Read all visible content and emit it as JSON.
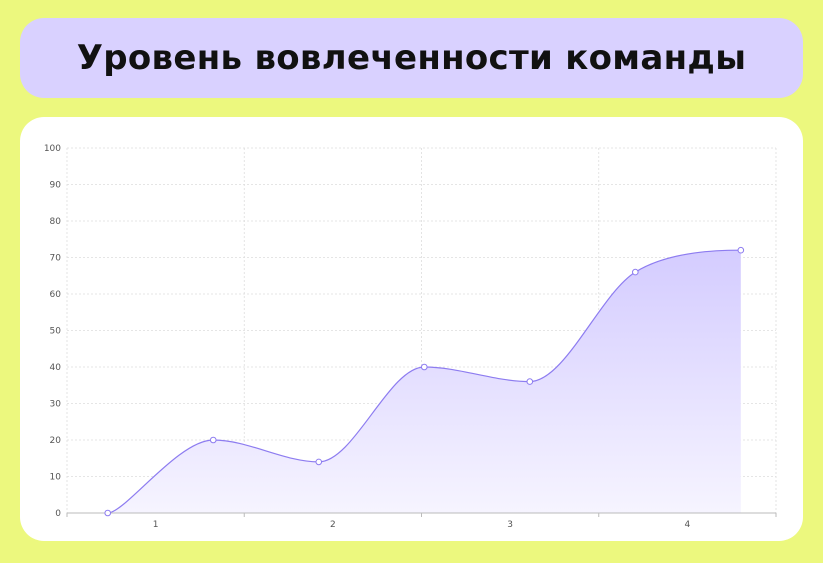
{
  "title": "Уровень вовлеченности команды",
  "colors": {
    "background": "#ECF87E",
    "title_box": "#D9D1FF",
    "line": "#8D7CF0",
    "fill_top": "#D4CCFF",
    "fill_bottom": "#F6F4FF"
  },
  "chart_data": {
    "type": "area",
    "title": "Уровень вовлеченности команды",
    "xlabel": "",
    "ylabel": "",
    "xlim": [
      0.65,
      4.48
    ],
    "ylim": [
      0,
      100
    ],
    "x_ticks": [
      1,
      2,
      3,
      4
    ],
    "y_ticks": [
      0,
      10,
      20,
      30,
      40,
      50,
      60,
      70,
      80,
      90,
      100
    ],
    "grid": true,
    "legend": "none",
    "points": [
      {
        "x": 0.87,
        "y": 0
      },
      {
        "x": 1.44,
        "y": 20
      },
      {
        "x": 2.01,
        "y": 14
      },
      {
        "x": 2.58,
        "y": 40
      },
      {
        "x": 3.15,
        "y": 36
      },
      {
        "x": 3.72,
        "y": 66
      },
      {
        "x": 4.29,
        "y": 72
      }
    ]
  }
}
